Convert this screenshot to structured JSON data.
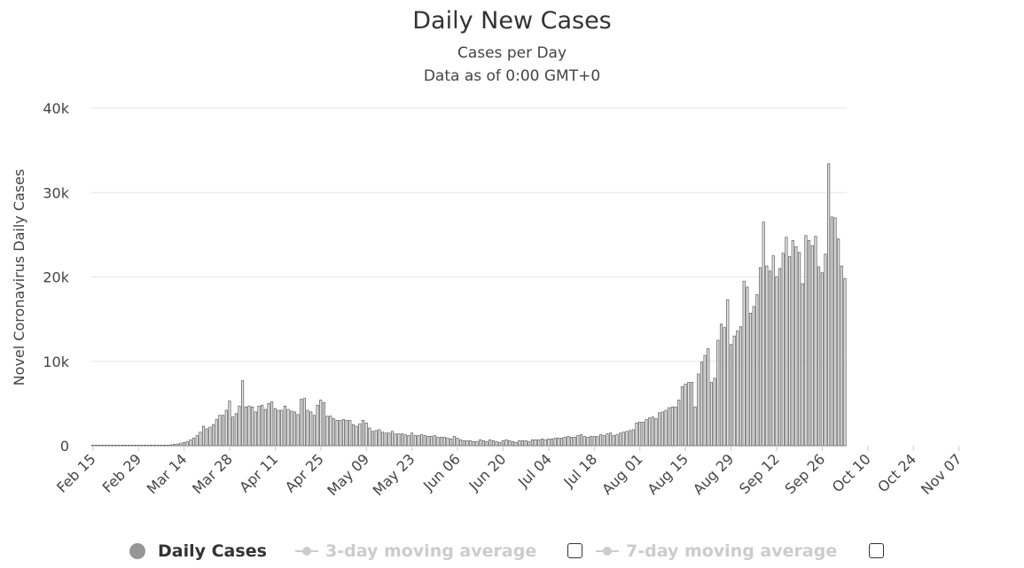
{
  "chart_data": {
    "type": "bar",
    "title": "Daily New Cases",
    "subtitle": "Cases per Day",
    "subtitle2": "Data as of 0:00 GMT+0",
    "ylabel": "Novel Coronavirus Daily Cases",
    "xlabel": "",
    "ylim": [
      0,
      40000
    ],
    "y_ticks": [
      0,
      10000,
      20000,
      30000,
      40000
    ],
    "y_tick_labels": [
      "0",
      "10k",
      "20k",
      "30k",
      "40k"
    ],
    "x_tick_labels": [
      "Feb 15",
      "Feb 29",
      "Mar 14",
      "Mar 28",
      "Apr 11",
      "Apr 25",
      "May 09",
      "May 23",
      "Jun 06",
      "Jun 20",
      "Jul 04",
      "Jul 18",
      "Aug 01",
      "Aug 15",
      "Aug 29",
      "Sep 12",
      "Sep 26",
      "Oct 10",
      "Oct 24",
      "Nov 07"
    ],
    "grid": true,
    "legend_position": "bottom",
    "colors": {
      "bar_fill": "#e6e6e6",
      "bar_stroke": "#555555",
      "grid": "#e6e6e6"
    },
    "series": [
      {
        "name": "Daily Cases",
        "start_date": "Feb 15",
        "values": [
          0,
          0,
          0,
          0,
          0,
          0,
          0,
          0,
          0,
          0,
          0,
          0,
          0,
          0,
          0,
          0,
          0,
          0,
          0,
          0,
          0,
          0,
          0,
          0,
          100,
          150,
          200,
          300,
          400,
          500,
          700,
          900,
          1200,
          1600,
          2300,
          2000,
          2200,
          2500,
          3100,
          3600,
          3600,
          4200,
          5300,
          3400,
          3800,
          4700,
          7700,
          4600,
          4700,
          4600,
          4000,
          4700,
          4800,
          4300,
          5000,
          5200,
          4400,
          4200,
          4200,
          4700,
          4300,
          4100,
          4000,
          3700,
          5500,
          5600,
          4200,
          4000,
          3600,
          4800,
          5400,
          5100,
          3500,
          3500,
          3200,
          3000,
          3000,
          3100,
          3000,
          3000,
          2500,
          2300,
          2600,
          3000,
          2700,
          2100,
          1700,
          1800,
          1900,
          1600,
          1500,
          1500,
          1700,
          1400,
          1400,
          1400,
          1300,
          1200,
          1500,
          1200,
          1200,
          1300,
          1200,
          1100,
          1100,
          1200,
          1000,
          1000,
          1000,
          900,
          800,
          1100,
          900,
          700,
          600,
          600,
          600,
          500,
          500,
          700,
          600,
          500,
          700,
          600,
          500,
          400,
          600,
          700,
          600,
          500,
          400,
          600,
          600,
          600,
          500,
          700,
          700,
          700,
          800,
          700,
          800,
          800,
          900,
          900,
          900,
          1000,
          1100,
          1000,
          1000,
          1200,
          1300,
          1100,
          1000,
          1100,
          1100,
          1100,
          1300,
          1200,
          1400,
          1500,
          1200,
          1300,
          1500,
          1600,
          1700,
          1800,
          1900,
          2700,
          2800,
          2800,
          3100,
          3300,
          3400,
          3200,
          3900,
          4000,
          4200,
          4500,
          4600,
          4600,
          5400,
          7000,
          7300,
          7500,
          7500,
          4600,
          8500,
          9900,
          10700,
          11500,
          7500,
          8000,
          12500,
          14400,
          14000,
          17300,
          12000,
          13000,
          13600,
          14100,
          19500,
          18800,
          15700,
          16500,
          17900,
          21100,
          26500,
          21300,
          20700,
          22500,
          20000,
          21000,
          22800,
          24700,
          22400,
          24300,
          23600,
          22900,
          19200,
          24900,
          24300,
          23700,
          24800,
          21200,
          20500,
          22700,
          33400,
          27100,
          27000,
          24500,
          21300,
          19800
        ]
      },
      {
        "name": "3-day moving average",
        "visible": false
      },
      {
        "name": "7-day moving average",
        "visible": false
      }
    ]
  }
}
